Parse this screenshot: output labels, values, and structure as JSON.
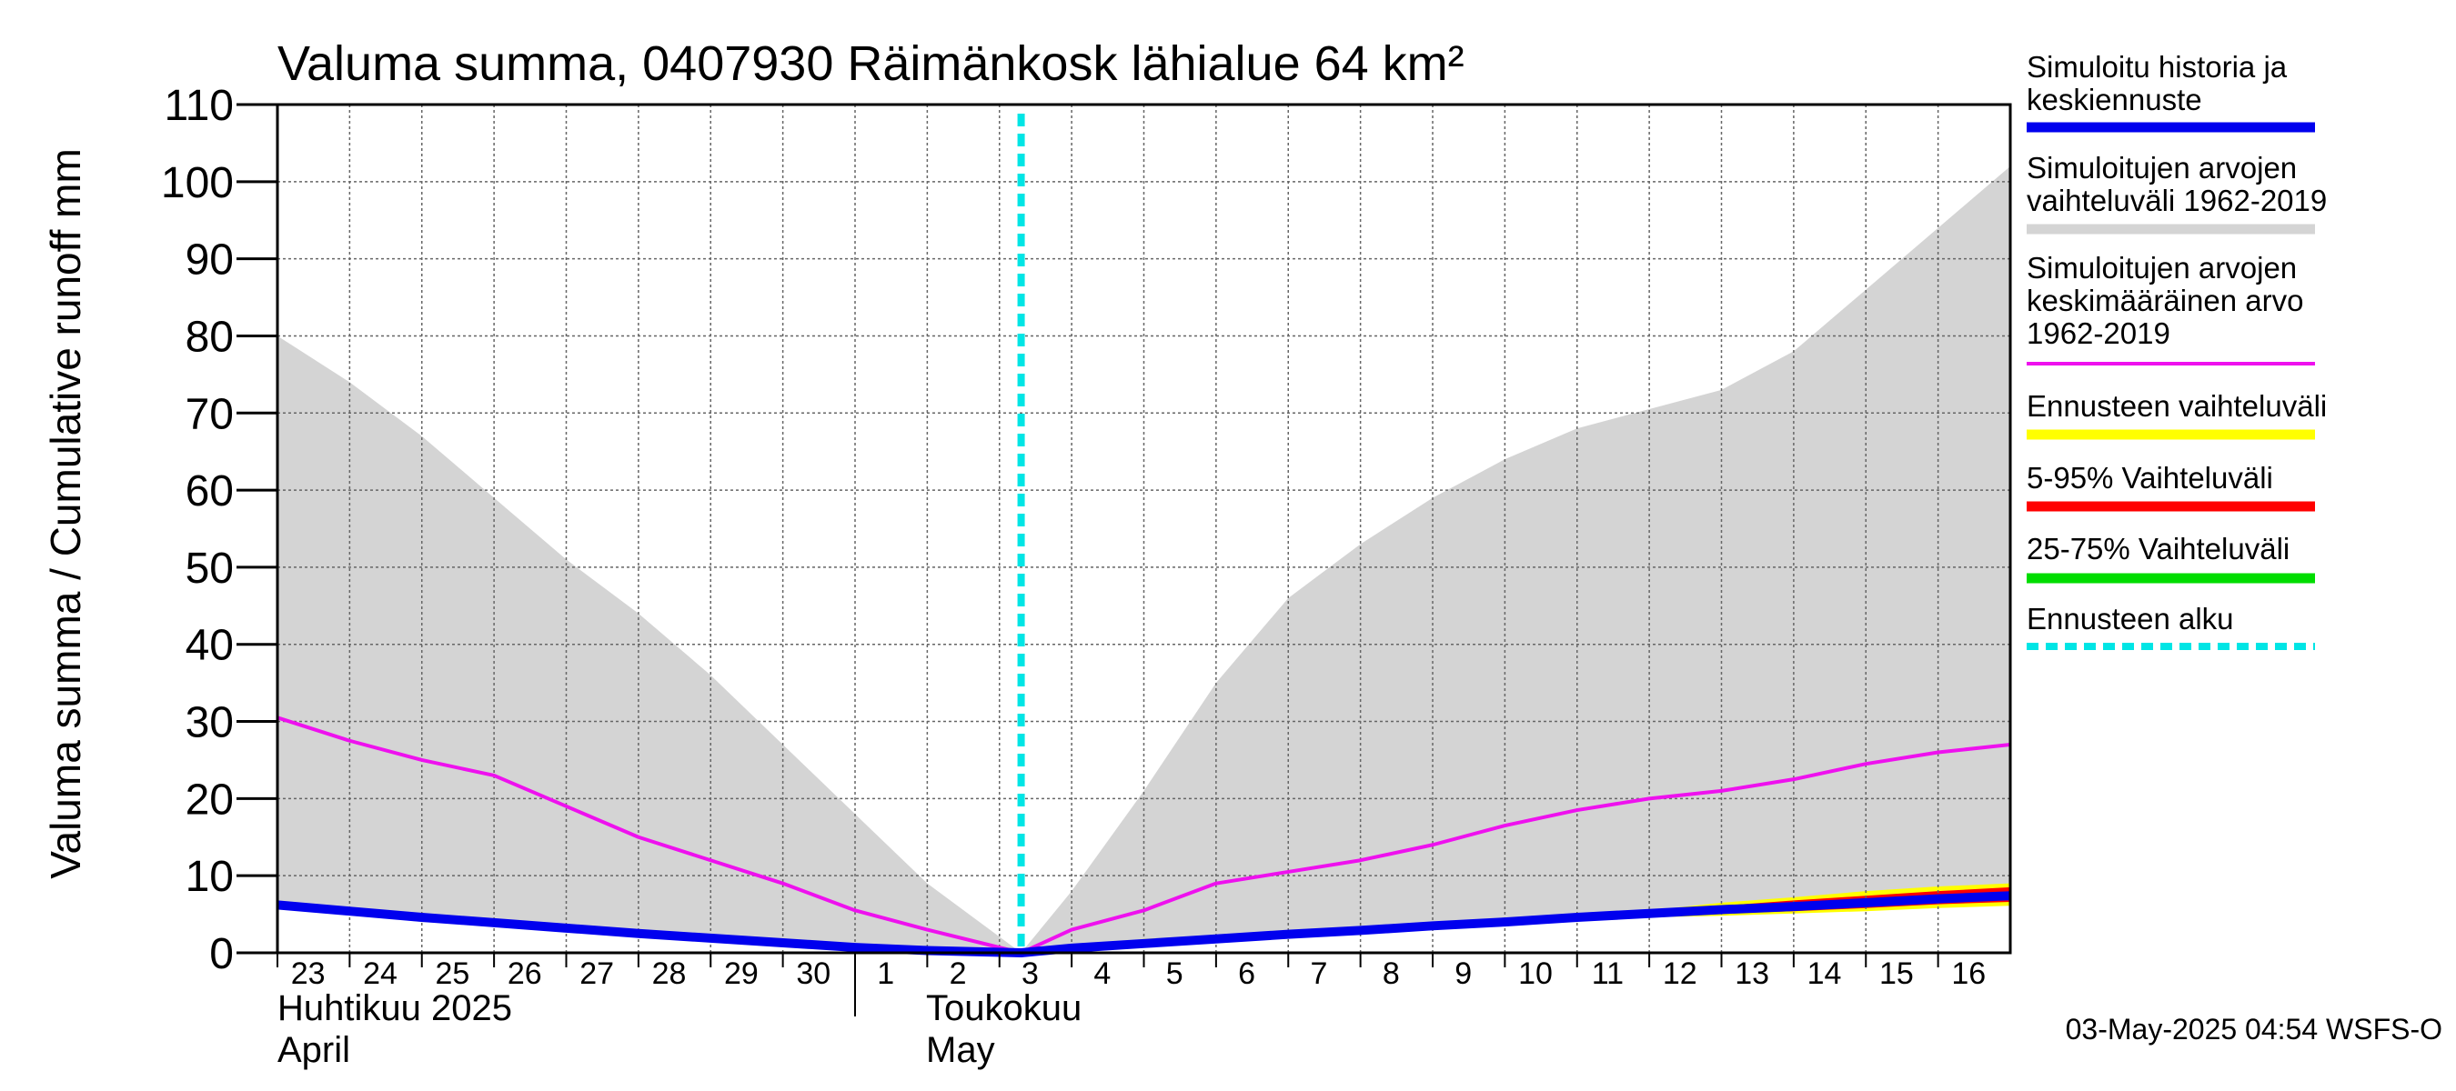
{
  "chart_data": {
    "type": "area",
    "title": "Valuma summa, 0407930 Räimänkosk lähialue 64 km²",
    "ylabel": "Valuma summa / Cumulative runoff    mm",
    "ylim": [
      0,
      110
    ],
    "yticks": [
      0,
      10,
      20,
      30,
      40,
      50,
      60,
      70,
      80,
      90,
      100,
      110
    ],
    "xticks": [
      "23",
      "24",
      "25",
      "26",
      "27",
      "28",
      "29",
      "30",
      "1",
      "2",
      "3",
      "4",
      "5",
      "6",
      "7",
      "8",
      "9",
      "10",
      "11",
      "12",
      "13",
      "14",
      "15",
      "16"
    ],
    "month_labels": [
      {
        "fi": "Huhtikuu  2025",
        "en": "April"
      },
      {
        "fi": "Toukokuu",
        "en": "May"
      }
    ],
    "forecast_start_day": 10.3,
    "grid": true,
    "legend_position": "right",
    "series": [
      {
        "name": "Simuloitujen arvojen vaihteluväli 1962-2019",
        "kind": "band",
        "color": "#d4d4d4",
        "upper": [
          [
            0,
            80
          ],
          [
            1,
            74
          ],
          [
            2,
            67
          ],
          [
            3,
            59
          ],
          [
            4,
            51
          ],
          [
            5,
            44
          ],
          [
            6,
            36
          ],
          [
            7,
            27
          ],
          [
            8,
            18
          ],
          [
            9,
            9
          ],
          [
            10.3,
            0
          ],
          [
            11,
            8
          ],
          [
            12,
            21
          ],
          [
            13,
            35
          ],
          [
            14,
            46
          ],
          [
            15,
            53
          ],
          [
            16,
            59
          ],
          [
            17,
            64
          ],
          [
            18,
            68
          ],
          [
            19,
            70.5
          ],
          [
            20,
            73
          ],
          [
            21,
            78
          ],
          [
            22,
            86
          ],
          [
            23,
            94
          ],
          [
            24,
            102
          ]
        ],
        "lower": [
          [
            0,
            6
          ],
          [
            1,
            5
          ],
          [
            2,
            4
          ],
          [
            3,
            3.5
          ],
          [
            4,
            3
          ],
          [
            5,
            2.5
          ],
          [
            6,
            2
          ],
          [
            7,
            1.5
          ],
          [
            8,
            1
          ],
          [
            9,
            0.5
          ],
          [
            10.3,
            0
          ],
          [
            11,
            1
          ],
          [
            12,
            1.5
          ],
          [
            13,
            2
          ],
          [
            14,
            2.5
          ],
          [
            15,
            3
          ],
          [
            16,
            3.5
          ],
          [
            17,
            4
          ],
          [
            18,
            4.5
          ],
          [
            19,
            5
          ],
          [
            20,
            5.5
          ],
          [
            21,
            6
          ],
          [
            22,
            6.5
          ],
          [
            23,
            7
          ],
          [
            24,
            7
          ]
        ]
      },
      {
        "name": "Simuloitujen arvojen keskimääräinen arvo  1962-2019",
        "kind": "line",
        "color": "#ee11ee",
        "points": [
          [
            0,
            30.5
          ],
          [
            1,
            27.5
          ],
          [
            2,
            25
          ],
          [
            3,
            23
          ],
          [
            4,
            19
          ],
          [
            5,
            15
          ],
          [
            6,
            12
          ],
          [
            7,
            9
          ],
          [
            8,
            5.5
          ],
          [
            9,
            3
          ],
          [
            10.3,
            0
          ],
          [
            11,
            3
          ],
          [
            12,
            5.5
          ],
          [
            13,
            9
          ],
          [
            14,
            10.5
          ],
          [
            15,
            12
          ],
          [
            16,
            14
          ],
          [
            17,
            16.5
          ],
          [
            18,
            18.5
          ],
          [
            19,
            20
          ],
          [
            20,
            21
          ],
          [
            21,
            22.5
          ],
          [
            22,
            24.5
          ],
          [
            23,
            26
          ],
          [
            24,
            27
          ]
        ]
      },
      {
        "name": "Ennusteen vaihteluväli",
        "kind": "band",
        "color": "#ffff00",
        "upper": [
          [
            10.3,
            0
          ],
          [
            12,
            1.8
          ],
          [
            14,
            2.8
          ],
          [
            16,
            3.8
          ],
          [
            18,
            4.8
          ],
          [
            19,
            5.5
          ],
          [
            20,
            6.5
          ],
          [
            21,
            7.2
          ],
          [
            22,
            8
          ],
          [
            23,
            8.6
          ],
          [
            24,
            9
          ]
        ],
        "lower": [
          [
            10.3,
            0
          ],
          [
            12,
            1.5
          ],
          [
            14,
            2.5
          ],
          [
            16,
            3.5
          ],
          [
            18,
            4.4
          ],
          [
            19,
            4.6
          ],
          [
            20,
            4.8
          ],
          [
            21,
            5.1
          ],
          [
            22,
            5.4
          ],
          [
            23,
            5.8
          ],
          [
            24,
            6.1
          ]
        ]
      },
      {
        "name": "5-95% Vaihteluväli",
        "kind": "band",
        "color": "#ff0000",
        "upper": [
          [
            10.3,
            0
          ],
          [
            12,
            1.7
          ],
          [
            14,
            2.7
          ],
          [
            16,
            3.7
          ],
          [
            18,
            4.7
          ],
          [
            19,
            5.3
          ],
          [
            20,
            6.1
          ],
          [
            21,
            6.8
          ],
          [
            22,
            7.4
          ],
          [
            23,
            8
          ],
          [
            24,
            8.5
          ]
        ],
        "lower": [
          [
            10.3,
            0
          ],
          [
            12,
            1.6
          ],
          [
            14,
            2.6
          ],
          [
            16,
            3.6
          ],
          [
            18,
            4.5
          ],
          [
            19,
            4.8
          ],
          [
            20,
            5.1
          ],
          [
            21,
            5.4
          ],
          [
            22,
            5.8
          ],
          [
            23,
            6.3
          ],
          [
            24,
            6.6
          ]
        ]
      },
      {
        "name": "25-75% Vaihteluväli",
        "kind": "band",
        "color": "#00dd00",
        "upper": [
          [
            10.3,
            0
          ],
          [
            18,
            4.6
          ],
          [
            20,
            5.6
          ],
          [
            22,
            6.6
          ],
          [
            24,
            7.6
          ]
        ],
        "lower": [
          [
            10.3,
            0
          ],
          [
            18,
            4.6
          ],
          [
            20,
            5.4
          ],
          [
            22,
            6.2
          ],
          [
            24,
            7.2
          ]
        ]
      },
      {
        "name": "Simuloitu historia ja keskiennuste",
        "kind": "line",
        "color": "#0000ee",
        "points": [
          [
            0,
            6.2
          ],
          [
            1,
            5.4
          ],
          [
            2,
            4.6
          ],
          [
            3,
            3.9
          ],
          [
            4,
            3.2
          ],
          [
            5,
            2.5
          ],
          [
            6,
            1.9
          ],
          [
            7,
            1.3
          ],
          [
            8,
            0.7
          ],
          [
            9,
            0.3
          ],
          [
            10.3,
            0
          ],
          [
            11,
            0.6
          ],
          [
            12,
            1.2
          ],
          [
            13,
            1.8
          ],
          [
            14,
            2.4
          ],
          [
            15,
            2.9
          ],
          [
            16,
            3.5
          ],
          [
            17,
            4.0
          ],
          [
            18,
            4.6
          ],
          [
            19,
            5.1
          ],
          [
            20,
            5.6
          ],
          [
            21,
            6.0
          ],
          [
            22,
            6.5
          ],
          [
            23,
            7.0
          ],
          [
            24,
            7.4
          ]
        ]
      }
    ]
  },
  "legend": [
    {
      "lines": [
        "Simuloitu historia ja",
        "keskiennuste"
      ],
      "color": "#0000ee",
      "style": "solid"
    },
    {
      "lines": [
        "Simuloitujen arvojen",
        "vaihteluväli 1962-2019"
      ],
      "color": "#d4d4d4",
      "style": "solid"
    },
    {
      "lines": [
        "Simuloitujen arvojen",
        "keskimääräinen arvo",
        "   1962-2019"
      ],
      "color": "#ee11ee",
      "style": "thin"
    },
    {
      "lines": [
        "Ennusteen vaihteluväli"
      ],
      "color": "#ffff00",
      "style": "solid"
    },
    {
      "lines": [
        "5-95% Vaihteluväli"
      ],
      "color": "#ff0000",
      "style": "solid"
    },
    {
      "lines": [
        "25-75% Vaihteluväli"
      ],
      "color": "#00dd00",
      "style": "solid"
    },
    {
      "lines": [
        "Ennusteen alku"
      ],
      "color": "#00e5e5",
      "style": "dashed"
    }
  ],
  "footer": "03-May-2025 04:54 WSFS-O"
}
